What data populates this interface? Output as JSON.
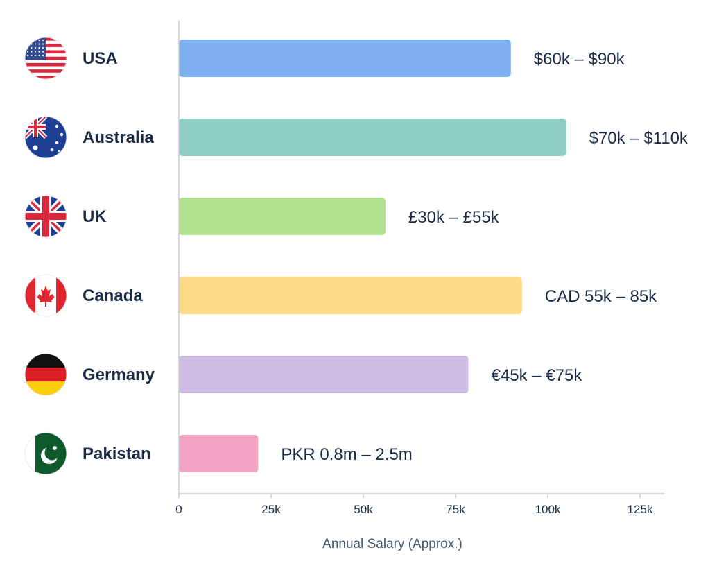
{
  "chart_data": {
    "type": "bar",
    "orientation": "horizontal",
    "categories": [
      "USA",
      "Australia",
      "UK",
      "Canada",
      "Germany",
      "Pakistan"
    ],
    "values": [
      90000,
      105000,
      56000,
      93000,
      78500,
      21500
    ],
    "value_labels": [
      "$60k – $90k",
      "$70k – $110k",
      "£30k – £55k",
      "CAD 55k – 85k",
      "€45k – €75k",
      "PKR 0.8m – 2.5m"
    ],
    "flags": [
      "usa-flag-icon",
      "australia-flag-icon",
      "uk-flag-icon",
      "canada-flag-icon",
      "germany-flag-icon",
      "pakistan-flag-icon"
    ],
    "colors": [
      "#7fb0f2",
      "#8fcfc3",
      "#b0e08e",
      "#fdd98a",
      "#cfbde6",
      "#f3a3c1"
    ],
    "xlabel": "Annual Salary (Approx.)",
    "xlim": [
      0,
      132000
    ],
    "xticks": [
      0,
      25000,
      50000,
      75000,
      100000,
      125000
    ],
    "xtick_labels": [
      "0",
      "25k",
      "50k",
      "75k",
      "100k",
      "125k"
    ],
    "grid": false
  }
}
